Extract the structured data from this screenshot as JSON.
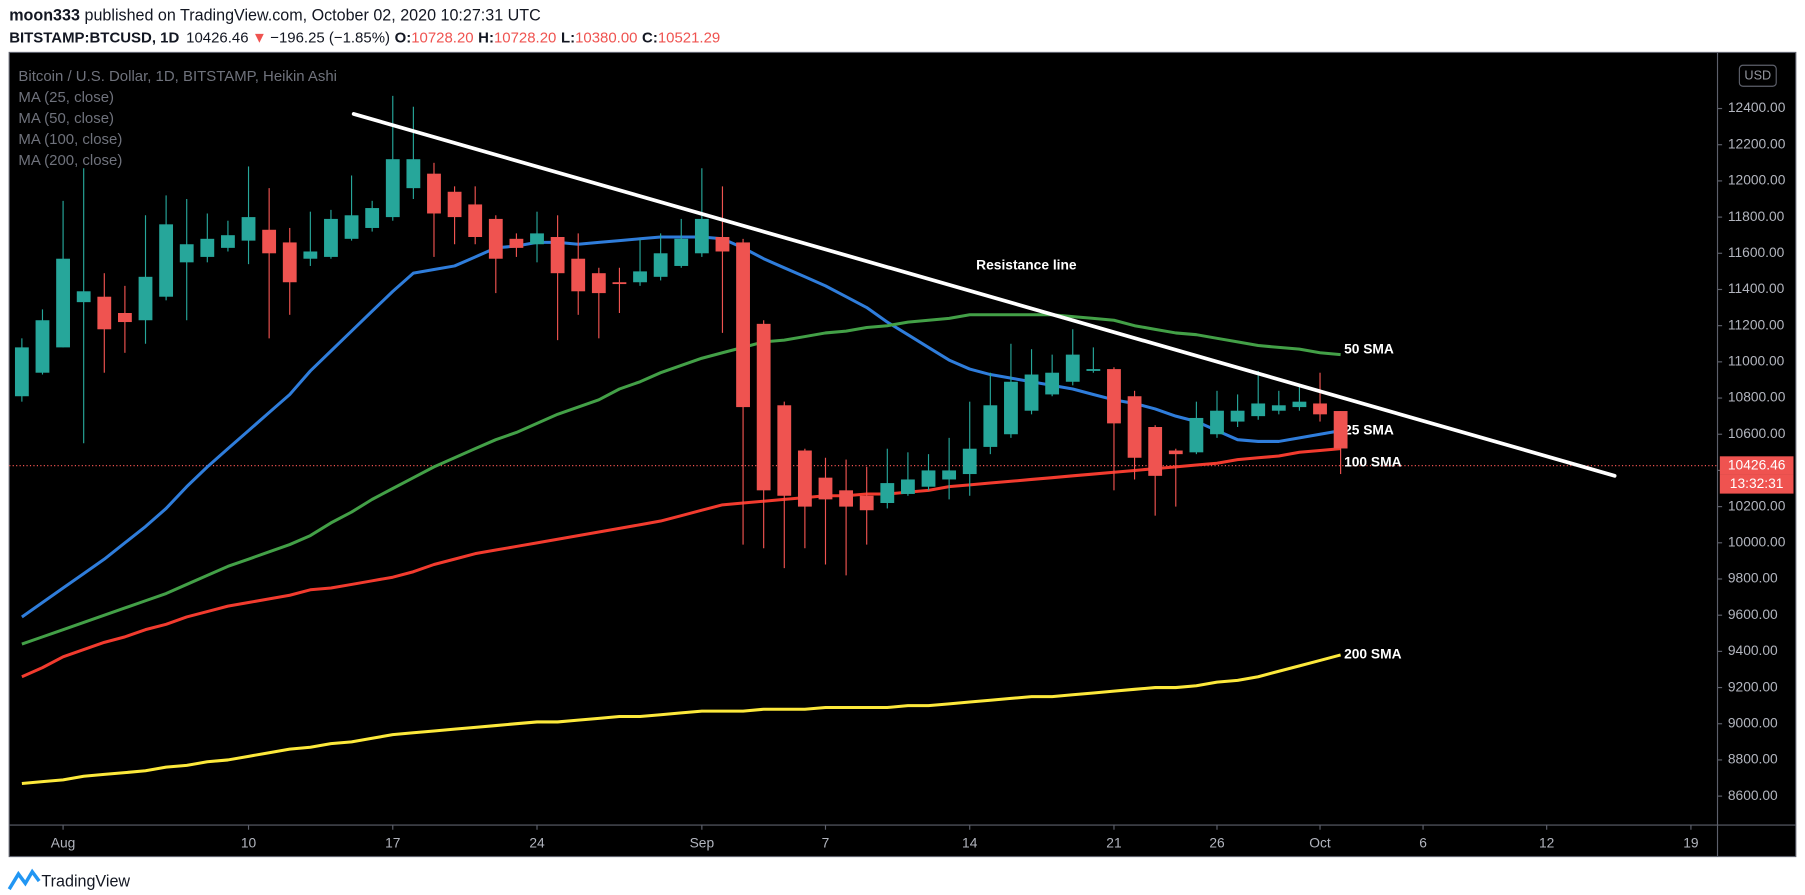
{
  "header": {
    "author": "moon333",
    "published": "published on TradingView.com, October 02, 2020 10:27:31 UTC",
    "symbol": "BITSTAMP:BTCUSD, 1D",
    "price": "10426.46",
    "arrow": "▼",
    "change": "−196.25 (−1.85%)",
    "ohlc": [
      {
        "key": "O:",
        "value": "10728.20"
      },
      {
        "key": "H:",
        "value": "10728.20"
      },
      {
        "key": "L:",
        "value": "10380.00"
      },
      {
        "key": "C:",
        "value": "10521.29"
      }
    ]
  },
  "footer": "TradingView",
  "chart_data": {
    "type": "candlestick",
    "title": "Bitcoin / U.S. Dollar, 1D, BITSTAMP, Heikin Ashi",
    "currency": "USD",
    "categories": [
      null,
      null,
      "Aug",
      null,
      null,
      null,
      null,
      null,
      null,
      null,
      null,
      "10",
      null,
      null,
      null,
      null,
      null,
      null,
      "17",
      null,
      null,
      null,
      null,
      null,
      null,
      "24",
      null,
      null,
      null,
      null,
      null,
      null,
      null,
      "Sep",
      null,
      null,
      null,
      null,
      null,
      "7",
      null,
      null,
      null,
      null,
      null,
      null,
      "14",
      null,
      null,
      null,
      null,
      null,
      null,
      "21",
      null,
      null,
      null,
      null,
      "26",
      null,
      null,
      null,
      null,
      "Oct",
      null,
      null,
      null,
      null,
      "6",
      null,
      null,
      null,
      null,
      null,
      "12",
      null,
      null,
      null,
      null,
      null,
      null,
      "19",
      null
    ],
    "open": [
      10810,
      10940,
      11080,
      11330,
      11360,
      11270,
      11230,
      11360,
      11550,
      11580,
      11630,
      11670,
      11730,
      11660,
      11570,
      11580,
      11680,
      11740,
      11800,
      11960,
      12040,
      11940,
      11870,
      11790,
      11680,
      11650,
      11690,
      11570,
      11490,
      11440,
      11440,
      11470,
      11530,
      11600,
      11690,
      11660,
      11210,
      10760,
      10510,
      10360,
      10290,
      10260,
      10220,
      10270,
      10310,
      10350,
      10380,
      10530,
      10600,
      10730,
      10820,
      10890,
      10950,
      10960,
      10810,
      10640,
      10510,
      10500,
      10600,
      10670,
      10700,
      10730,
      10750,
      10770,
      10728.2,
      null,
      null,
      null,
      null,
      null,
      null,
      null,
      null,
      null,
      null,
      null,
      null,
      null,
      null,
      null,
      null,
      null,
      null
    ],
    "high": [
      11130,
      11290,
      11890,
      12070,
      11490,
      11420,
      11810,
      11920,
      11900,
      11820,
      11780,
      12080,
      11960,
      11740,
      11830,
      11840,
      12030,
      11890,
      12470,
      12410,
      12100,
      11970,
      11970,
      11810,
      11710,
      11830,
      11810,
      11710,
      11520,
      11520,
      11680,
      11710,
      11790,
      12070,
      11970,
      11680,
      11230,
      10780,
      10520,
      10470,
      10460,
      10420,
      10520,
      10500,
      10490,
      10580,
      10780,
      10940,
      11100,
      11070,
      11040,
      11180,
      11080,
      10970,
      10840,
      10650,
      10520,
      10780,
      10840,
      10820,
      10950,
      10840,
      10870,
      10940,
      10728.2,
      null,
      null,
      null,
      null,
      null,
      null,
      null,
      null,
      null,
      null,
      null,
      null,
      null,
      null,
      null,
      null,
      null,
      null
    ],
    "low": [
      10780,
      10930,
      11080,
      10550,
      10940,
      11050,
      11100,
      11340,
      11230,
      11550,
      11610,
      11540,
      11130,
      11260,
      11530,
      11570,
      11670,
      11720,
      11780,
      11900,
      11580,
      11650,
      11650,
      11380,
      11580,
      11550,
      11120,
      11260,
      11130,
      11270,
      11420,
      11450,
      11520,
      11580,
      11160,
      9990,
      9970,
      9860,
      9970,
      9880,
      9820,
      9990,
      10190,
      10260,
      10290,
      10240,
      10260,
      10490,
      10580,
      10710,
      10810,
      10870,
      10940,
      10290,
      10350,
      10150,
      10200,
      10490,
      10580,
      10640,
      10680,
      10710,
      10730,
      10670,
      10380,
      null,
      null,
      null,
      null,
      null,
      null,
      null,
      null,
      null,
      null,
      null,
      null,
      null,
      null,
      null,
      null,
      null,
      null
    ],
    "close": [
      11080,
      11230,
      11570,
      11390,
      11180,
      11220,
      11470,
      11760,
      11650,
      11680,
      11700,
      11800,
      11600,
      11440,
      11610,
      11790,
      11810,
      11850,
      12120,
      12120,
      11820,
      11800,
      11690,
      11570,
      11630,
      11710,
      11490,
      11390,
      11380,
      11430,
      11500,
      11600,
      11680,
      11790,
      11610,
      10750,
      10290,
      10260,
      10200,
      10240,
      10200,
      10180,
      10330,
      10350,
      10400,
      10400,
      10520,
      10760,
      10890,
      10930,
      10940,
      11040,
      10960,
      10660,
      10470,
      10370,
      10490,
      10690,
      10730,
      10730,
      10770,
      10760,
      10780,
      10710,
      10521.29,
      null,
      null,
      null,
      null,
      null,
      null,
      null,
      null,
      null,
      null,
      null,
      null,
      null,
      null,
      null,
      null,
      null,
      null
    ],
    "up_color": "#26a69a",
    "down_color": "#ef5350",
    "series": [
      {
        "name": "MA (25, close)",
        "label": "25 SMA",
        "color": "#2f7ddb",
        "values": [
          9590,
          9670,
          9750,
          9830,
          9910,
          10000,
          10090,
          10190,
          10310,
          10420,
          10520,
          10620,
          10720,
          10820,
          10950,
          11060,
          11170,
          11280,
          11390,
          11490,
          11510,
          11530,
          11580,
          11630,
          11640,
          11660,
          11660,
          11650,
          11660,
          11670,
          11680,
          11690,
          11690,
          11690,
          11680,
          11630,
          11570,
          11520,
          11470,
          11420,
          11360,
          11300,
          11220,
          11150,
          11080,
          11010,
          10960,
          10930,
          10910,
          10890,
          10870,
          10850,
          10820,
          10790,
          10770,
          10740,
          10700,
          10670,
          10620,
          10570,
          10560,
          10560,
          10580,
          10600,
          10620,
          null,
          null,
          null,
          null,
          null,
          null,
          null,
          null,
          null,
          null,
          null,
          null,
          null,
          null,
          null,
          null,
          null,
          null
        ]
      },
      {
        "name": "MA (50, close)",
        "label": "50 SMA",
        "color": "#43a047",
        "values": [
          9440,
          9480,
          9520,
          9560,
          9600,
          9640,
          9680,
          9720,
          9770,
          9820,
          9870,
          9910,
          9950,
          9990,
          10040,
          10110,
          10170,
          10240,
          10300,
          10360,
          10420,
          10470,
          10520,
          10570,
          10610,
          10660,
          10710,
          10750,
          10790,
          10850,
          10890,
          10940,
          10980,
          11020,
          11050,
          11080,
          11110,
          11120,
          11140,
          11160,
          11170,
          11190,
          11200,
          11220,
          11230,
          11240,
          11260,
          11260,
          11260,
          11260,
          11260,
          11250,
          11240,
          11230,
          11200,
          11180,
          11160,
          11150,
          11130,
          11110,
          11090,
          11080,
          11070,
          11050,
          11040,
          null,
          null,
          null,
          null,
          null,
          null,
          null,
          null,
          null,
          null,
          null,
          null,
          null,
          null,
          null,
          null,
          null,
          null
        ]
      },
      {
        "name": "MA (100, close)",
        "label": "100 SMA",
        "color": "#f23b2e",
        "values": [
          9260,
          9310,
          9370,
          9410,
          9450,
          9480,
          9520,
          9550,
          9590,
          9620,
          9650,
          9670,
          9690,
          9710,
          9740,
          9750,
          9770,
          9790,
          9810,
          9840,
          9880,
          9910,
          9940,
          9960,
          9980,
          10000,
          10020,
          10040,
          10060,
          10080,
          10100,
          10120,
          10150,
          10180,
          10210,
          10220,
          10230,
          10240,
          10250,
          10260,
          10260,
          10270,
          10270,
          10280,
          10290,
          10310,
          10320,
          10330,
          10340,
          10350,
          10360,
          10370,
          10380,
          10390,
          10400,
          10410,
          10420,
          10430,
          10440,
          10460,
          10470,
          10480,
          10500,
          10510,
          10520,
          null,
          null,
          null,
          null,
          null,
          null,
          null,
          null,
          null,
          null,
          null,
          null,
          null,
          null,
          null,
          null,
          null,
          null
        ]
      },
      {
        "name": "MA (200, close)",
        "label": "200 SMA",
        "color": "#fde93b",
        "values": [
          8670,
          8680,
          8690,
          8710,
          8720,
          8730,
          8740,
          8760,
          8770,
          8790,
          8800,
          8820,
          8840,
          8860,
          8870,
          8890,
          8900,
          8920,
          8940,
          8950,
          8960,
          8970,
          8980,
          8990,
          9000,
          9010,
          9010,
          9020,
          9030,
          9040,
          9040,
          9050,
          9060,
          9070,
          9070,
          9070,
          9080,
          9080,
          9080,
          9090,
          9090,
          9090,
          9090,
          9100,
          9100,
          9110,
          9120,
          9130,
          9140,
          9150,
          9150,
          9160,
          9170,
          9180,
          9190,
          9200,
          9200,
          9210,
          9230,
          9240,
          9260,
          9290,
          9320,
          9350,
          9380,
          null,
          null,
          null,
          null,
          null,
          null,
          null,
          null,
          null,
          null,
          null,
          null,
          null,
          null,
          null,
          null,
          null,
          null
        ]
      }
    ],
    "trendline": {
      "x": [
        16.1,
        77.3
      ],
      "values": [
        12370,
        10370
      ],
      "color": "#ffffff"
    },
    "annotations": [
      {
        "text": "Resistance line"
      }
    ],
    "last_price": {
      "value": 10426.46,
      "label": "10426.46",
      "countdown": "13:32:31",
      "color": "#ef5350"
    },
    "ylim": [
      8440,
      12710
    ],
    "yticks": [
      {
        "value": 8600,
        "label": "8600.00"
      },
      {
        "value": 8800,
        "label": "8800.00"
      },
      {
        "value": 9000,
        "label": "9000.00"
      },
      {
        "value": 9200,
        "label": "9200.00"
      },
      {
        "value": 9400,
        "label": "9400.00"
      },
      {
        "value": 9600,
        "label": "9600.00"
      },
      {
        "value": 9800,
        "label": "9800.00"
      },
      {
        "value": 10000,
        "label": "10000.00"
      },
      {
        "value": 10200,
        "label": "10200.00"
      },
      {
        "value": 10400,
        "label": "10400.00"
      },
      {
        "value": 10600,
        "label": "10600.00"
      },
      {
        "value": 10800,
        "label": "10800.00"
      },
      {
        "value": 11000,
        "label": "11000.00"
      },
      {
        "value": 11200,
        "label": "11200.00"
      },
      {
        "value": 11400,
        "label": "11400.00"
      },
      {
        "value": 11600,
        "label": "11600.00"
      },
      {
        "value": 11800,
        "label": "11800.00"
      },
      {
        "value": 12000,
        "label": "12000.00"
      },
      {
        "value": 12200,
        "label": "12200.00"
      },
      {
        "value": 12400,
        "label": "12400.00"
      }
    ],
    "grid": false
  }
}
